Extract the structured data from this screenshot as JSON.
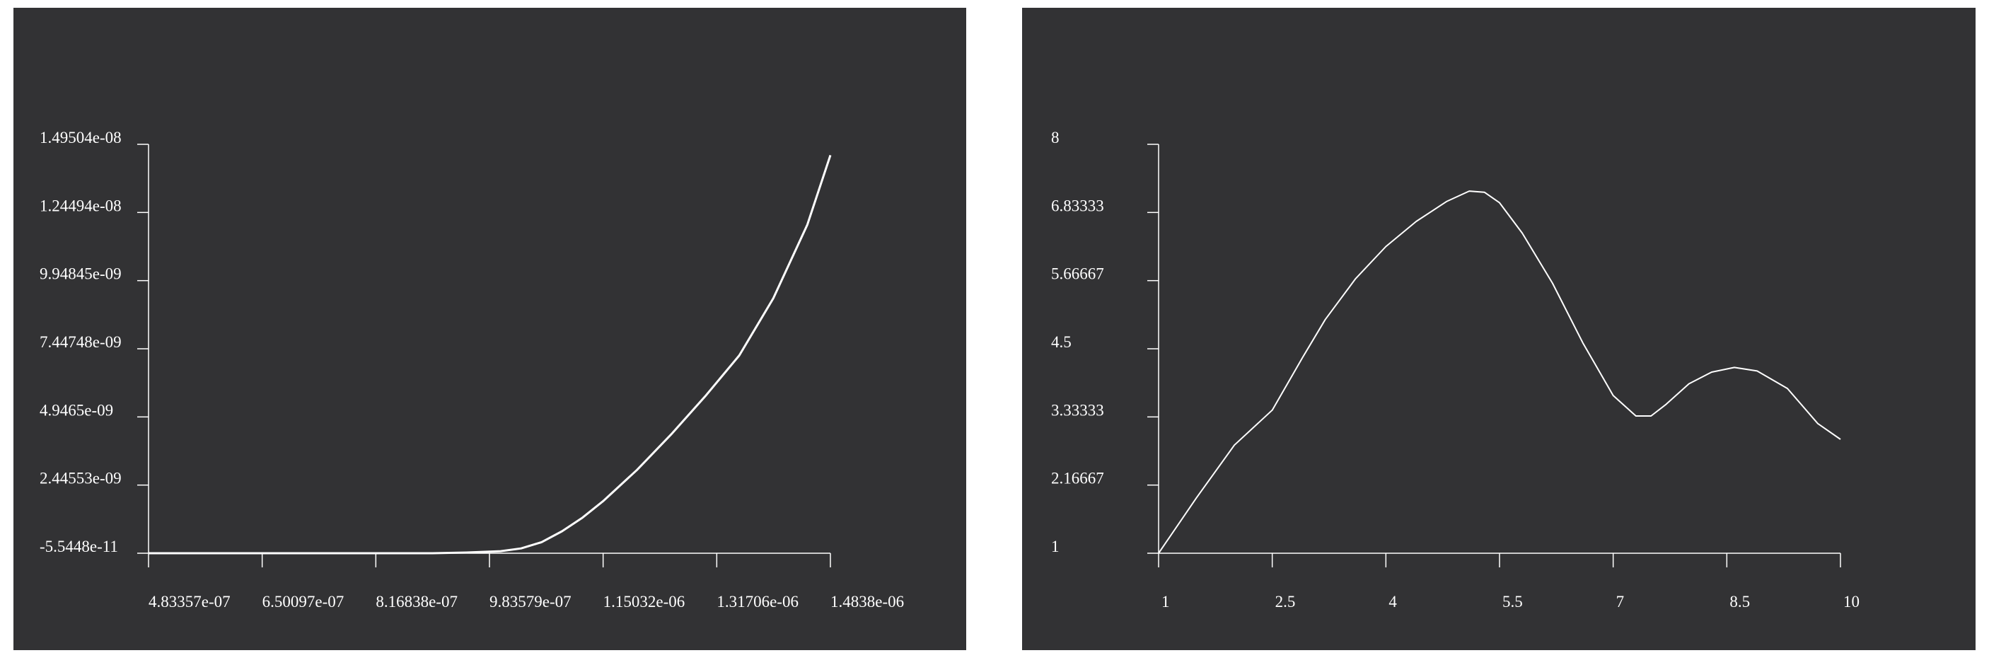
{
  "colors": {
    "background": "#ffffff",
    "panel": "#323234",
    "axis": "#ffffff",
    "line": "#ffffff"
  },
  "chart_data": [
    {
      "type": "line",
      "title": "",
      "xlabel": "",
      "ylabel": "",
      "xlim": [
        4.83357e-07,
        1.4838e-06
      ],
      "ylim": [
        -5.5448e-11,
        1.49504e-08
      ],
      "x_ticks": [
        "4.83357e-07",
        "6.50097e-07",
        "8.16838e-07",
        "9.83579e-07",
        "1.15032e-06",
        "1.31706e-06",
        "1.4838e-06"
      ],
      "y_ticks": [
        "-5.5448e-11",
        "2.44553e-09",
        "4.9465e-09",
        "7.44748e-09",
        "9.94845e-09",
        "1.24494e-08",
        "1.49504e-08"
      ],
      "grid": false,
      "series": [
        {
          "x": [
            4.83357e-07,
            6e-07,
            7e-07,
            8e-07,
            9e-07,
            9.5e-07,
            1e-06,
            1.03e-06,
            1.06e-06,
            1.09e-06,
            1.12e-06,
            1.15e-06,
            1.2e-06,
            1.25e-06,
            1.3e-06,
            1.35e-06,
            1.4e-06,
            1.45e-06,
            1.4838e-06
          ],
          "y": [
            -5.5448e-11,
            -5.5448e-11,
            -5.5448e-11,
            -5.5448e-11,
            -5.5448e-11,
            -3e-11,
            2e-11,
            1.2e-10,
            3.5e-10,
            7.5e-10,
            1.25e-09,
            1.85e-09,
            3e-09,
            4.3e-09,
            5.7e-09,
            7.2e-09,
            9.3e-09,
            1.2e-08,
            1.455e-08
          ]
        }
      ]
    },
    {
      "type": "line",
      "title": "",
      "xlabel": "",
      "ylabel": "",
      "xlim": [
        1,
        10
      ],
      "ylim": [
        1,
        8
      ],
      "x_ticks": [
        "1",
        "2.5",
        "4",
        "5.5",
        "7",
        "8.5",
        "10"
      ],
      "y_ticks": [
        "1",
        "2.16667",
        "3.33333",
        "4.5",
        "5.66667",
        "6.83333",
        "8"
      ],
      "grid": false,
      "series": [
        {
          "x": [
            1,
            1.5,
            2,
            2.5,
            2.9,
            3.2,
            3.6,
            4,
            4.4,
            4.8,
            5.1,
            5.3,
            5.5,
            5.8,
            6.2,
            6.6,
            7,
            7.3,
            7.5,
            7.7,
            8,
            8.3,
            8.6,
            8.9,
            9.3,
            9.7,
            10
          ],
          "y": [
            1,
            1.95,
            2.85,
            3.45,
            4.35,
            5.0,
            5.7,
            6.25,
            6.68,
            7.02,
            7.2,
            7.18,
            7.0,
            6.48,
            5.62,
            4.6,
            3.7,
            3.35,
            3.35,
            3.55,
            3.9,
            4.1,
            4.18,
            4.12,
            3.82,
            3.22,
            2.95
          ]
        }
      ]
    }
  ]
}
